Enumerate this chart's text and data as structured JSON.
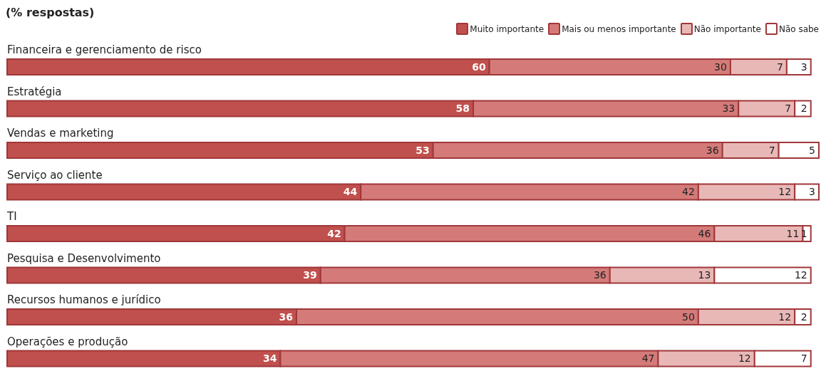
{
  "chart_data": {
    "type": "bar",
    "orientation": "horizontal",
    "stacked": true,
    "title": "(% respostas)",
    "categories": [
      "Financeira e gerenciamento de risco",
      "Estratégia",
      "Vendas e marketing",
      "Serviço ao cliente",
      "TI",
      "Pesquisa e Desenvolvimento",
      "Recursos humanos e jurídico",
      "Operações e produção"
    ],
    "series": [
      {
        "name": "Muito importante",
        "color": "#c0504d",
        "values": [
          60,
          58,
          53,
          44,
          42,
          39,
          36,
          34
        ]
      },
      {
        "name": "Mais ou menos importante",
        "color": "#d47b79",
        "values": [
          30,
          33,
          36,
          42,
          46,
          36,
          50,
          47
        ]
      },
      {
        "name": "Não importante",
        "color": "#e8b8b7",
        "values": [
          7,
          7,
          7,
          12,
          11,
          13,
          12,
          12
        ]
      },
      {
        "name": "Não sabe",
        "color": "#ffffff",
        "values": [
          3,
          2,
          5,
          3,
          1,
          12,
          2,
          7
        ]
      }
    ],
    "data_labels": true,
    "legend": "top right",
    "grid": false
  }
}
